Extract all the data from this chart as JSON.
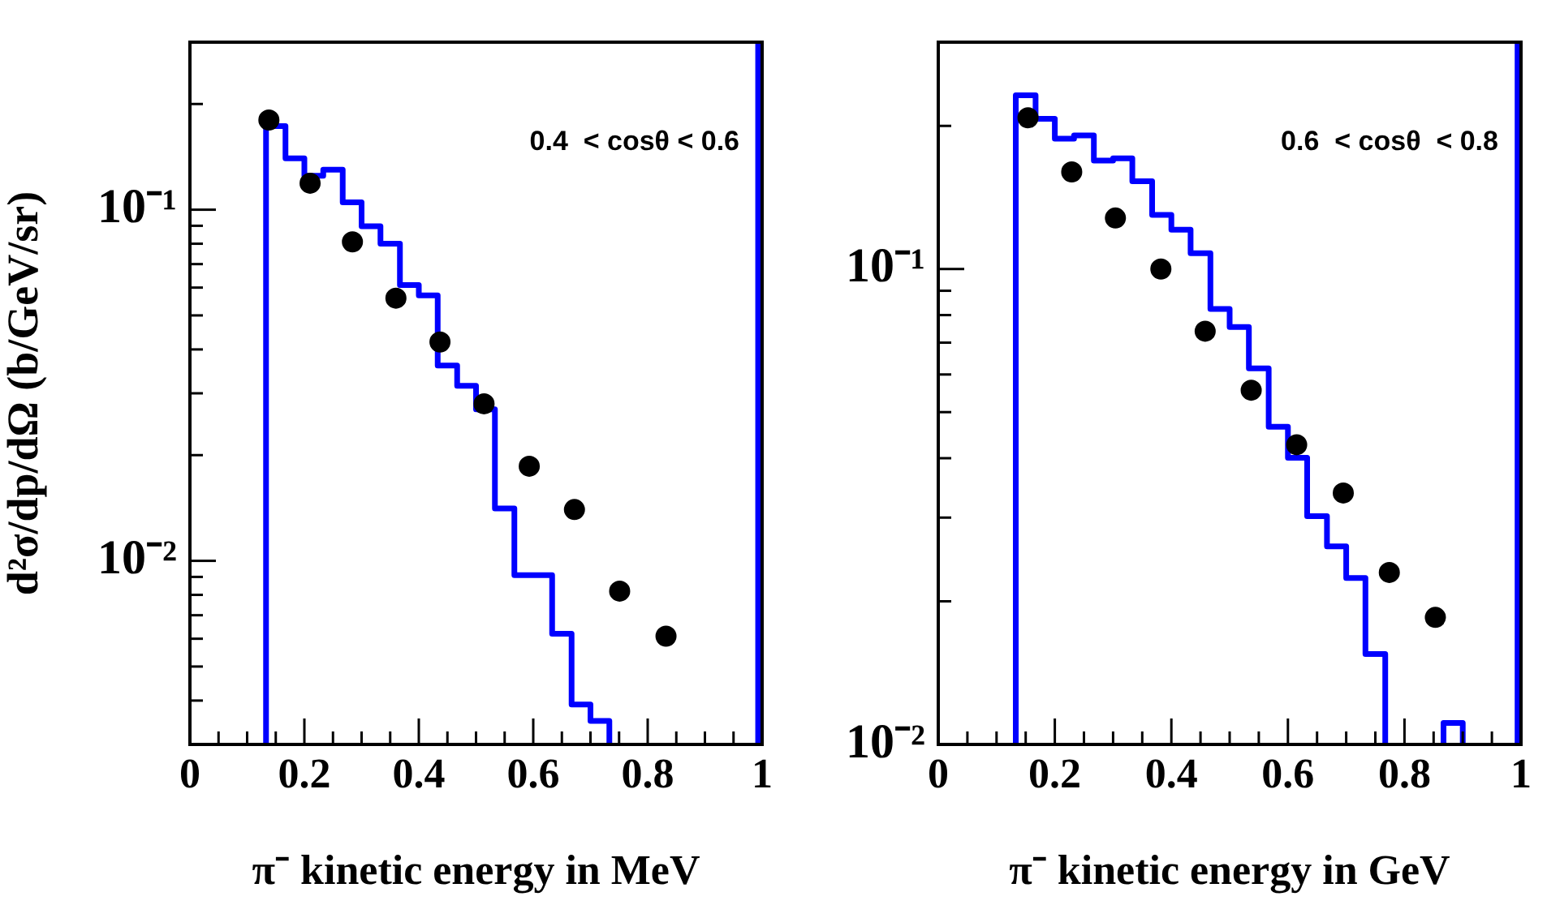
{
  "chart_data": [
    {
      "type": "scatter",
      "ylabel": "d²σ/dp/dΩ (b/GeV/sr)",
      "xlabel": "π⁻ kinetic energy in MeV",
      "annotations": [
        "0.4  < cosθ < 0.6"
      ],
      "log": "y",
      "grid": false,
      "legend": false,
      "marker": "circle",
      "xlim": [
        0,
        1
      ],
      "xticks": [
        0,
        {
          "value": 0.05,
          "label": null
        },
        {
          "value": 0.1,
          "label": null
        },
        {
          "value": 0.15,
          "label": null
        },
        0.2,
        {
          "value": 0.25,
          "label": null
        },
        {
          "value": 0.3,
          "label": null
        },
        {
          "value": 0.35,
          "label": null
        },
        0.4,
        {
          "value": 0.45,
          "label": null
        },
        {
          "value": 0.5,
          "label": null
        },
        {
          "value": 0.55,
          "label": null
        },
        0.6,
        {
          "value": 0.65,
          "label": null
        },
        {
          "value": 0.7,
          "label": null
        },
        {
          "value": 0.75,
          "label": null
        },
        0.8,
        {
          "value": 0.85,
          "label": null
        },
        {
          "value": 0.9,
          "label": null
        },
        {
          "value": 0.95,
          "label": null
        },
        1
      ],
      "ylim": [
        0.003,
        0.3
      ],
      "yticks": [
        {
          "value": 0.004,
          "label": null
        },
        {
          "value": 0.005,
          "label": null
        },
        {
          "value": 0.006,
          "label": null
        },
        {
          "value": 0.007,
          "label": null
        },
        {
          "value": 0.008,
          "label": null
        },
        {
          "value": 0.009,
          "label": null
        },
        {
          "value": 0.01,
          "label": "10⁻²"
        },
        {
          "value": 0.02,
          "label": null
        },
        {
          "value": 0.03,
          "label": null
        },
        {
          "value": 0.04,
          "label": null
        },
        {
          "value": 0.05,
          "label": null
        },
        {
          "value": 0.06,
          "label": null
        },
        {
          "value": 0.07,
          "label": null
        },
        {
          "value": 0.08,
          "label": null
        },
        {
          "value": 0.09,
          "label": null
        },
        {
          "value": 0.1,
          "label": "10⁻¹"
        },
        {
          "value": 0.2,
          "label": null
        }
      ],
      "ref_lines": [
        {
          "axis": "x",
          "value": 0.993,
          "color": "#0000ff"
        }
      ],
      "series": [
        {
          "color": "#000000",
          "x": [
            0.138,
            0.21,
            0.284,
            0.36,
            0.437,
            0.514,
            0.593,
            0.672,
            0.751,
            0.832
          ],
          "values": [
            0.18,
            0.119,
            0.081,
            0.056,
            0.042,
            0.028,
            0.0186,
            0.014,
            0.0082,
            0.0061
          ]
        },
        {
          "type": "histogram",
          "color": "#0000ff",
          "bins": [
            0.133,
            0.167,
            0.2,
            0.233,
            0.267,
            0.3,
            0.333,
            0.367,
            0.4,
            0.433,
            0.467,
            0.5,
            0.533,
            0.567,
            0.6,
            0.633,
            0.667,
            0.7,
            0.733
          ],
          "values": [
            0.173,
            0.14,
            0.125,
            0.13,
            0.105,
            0.0897,
            0.08,
            0.061,
            0.057,
            0.036,
            0.0315,
            0.027,
            0.0141,
            0.0091,
            0.0091,
            0.0062,
            0.0039,
            0.0035
          ]
        }
      ]
    },
    {
      "type": "scatter",
      "xlabel": "π⁻ kinetic energy in GeV",
      "annotations": [
        "0.6  < cosθ  < 0.8"
      ],
      "log": "y",
      "grid": false,
      "legend": false,
      "marker": "circle",
      "xlim": [
        0,
        1
      ],
      "xticks": [
        0,
        {
          "value": 0.05,
          "label": null
        },
        {
          "value": 0.1,
          "label": null
        },
        {
          "value": 0.15,
          "label": null
        },
        0.2,
        {
          "value": 0.25,
          "label": null
        },
        {
          "value": 0.3,
          "label": null
        },
        {
          "value": 0.35,
          "label": null
        },
        0.4,
        {
          "value": 0.45,
          "label": null
        },
        {
          "value": 0.5,
          "label": null
        },
        {
          "value": 0.55,
          "label": null
        },
        0.6,
        {
          "value": 0.65,
          "label": null
        },
        {
          "value": 0.7,
          "label": null
        },
        {
          "value": 0.75,
          "label": null
        },
        0.8,
        {
          "value": 0.85,
          "label": null
        },
        {
          "value": 0.9,
          "label": null
        },
        {
          "value": 0.95,
          "label": null
        },
        1
      ],
      "ylim": [
        0.01,
        0.3
      ],
      "yticks": [
        {
          "value": 0.01,
          "label": "10⁻²"
        },
        {
          "value": 0.02,
          "label": null
        },
        {
          "value": 0.03,
          "label": null
        },
        {
          "value": 0.04,
          "label": null
        },
        {
          "value": 0.05,
          "label": null
        },
        {
          "value": 0.06,
          "label": null
        },
        {
          "value": 0.07,
          "label": null
        },
        {
          "value": 0.08,
          "label": null
        },
        {
          "value": 0.09,
          "label": null
        },
        {
          "value": 0.1,
          "label": "10⁻¹"
        },
        {
          "value": 0.2,
          "label": null
        }
      ],
      "ref_lines": [
        {
          "axis": "x",
          "value": 0.994,
          "color": "#0000ff"
        }
      ],
      "series": [
        {
          "color": "#000000",
          "x": [
            0.154,
            0.229,
            0.304,
            0.382,
            0.458,
            0.537,
            0.615,
            0.695,
            0.774,
            0.853
          ],
          "values": [
            0.208,
            0.16,
            0.128,
            0.1,
            0.074,
            0.0556,
            0.0427,
            0.0338,
            0.023,
            0.0185
          ]
        },
        {
          "type": "histogram",
          "color": "#0000ff",
          "bins": [
            0.133,
            0.167,
            0.2,
            0.233,
            0.267,
            0.3,
            0.333,
            0.367,
            0.4,
            0.433,
            0.467,
            0.5,
            0.533,
            0.567,
            0.6,
            0.633,
            0.667,
            0.7,
            0.733,
            0.767
          ],
          "values": [
            0.232,
            0.207,
            0.188,
            0.191,
            0.169,
            0.171,
            0.153,
            0.13,
            0.121,
            0.108,
            0.0824,
            0.0755,
            0.0618,
            0.0466,
            0.0401,
            0.0302,
            0.0261,
            0.0224,
            0.0155
          ]
        },
        {
          "type": "histogram",
          "color": "#0000ff",
          "bins": [
            0.867,
            0.9
          ],
          "values": [
            0.0111
          ]
        }
      ]
    }
  ]
}
